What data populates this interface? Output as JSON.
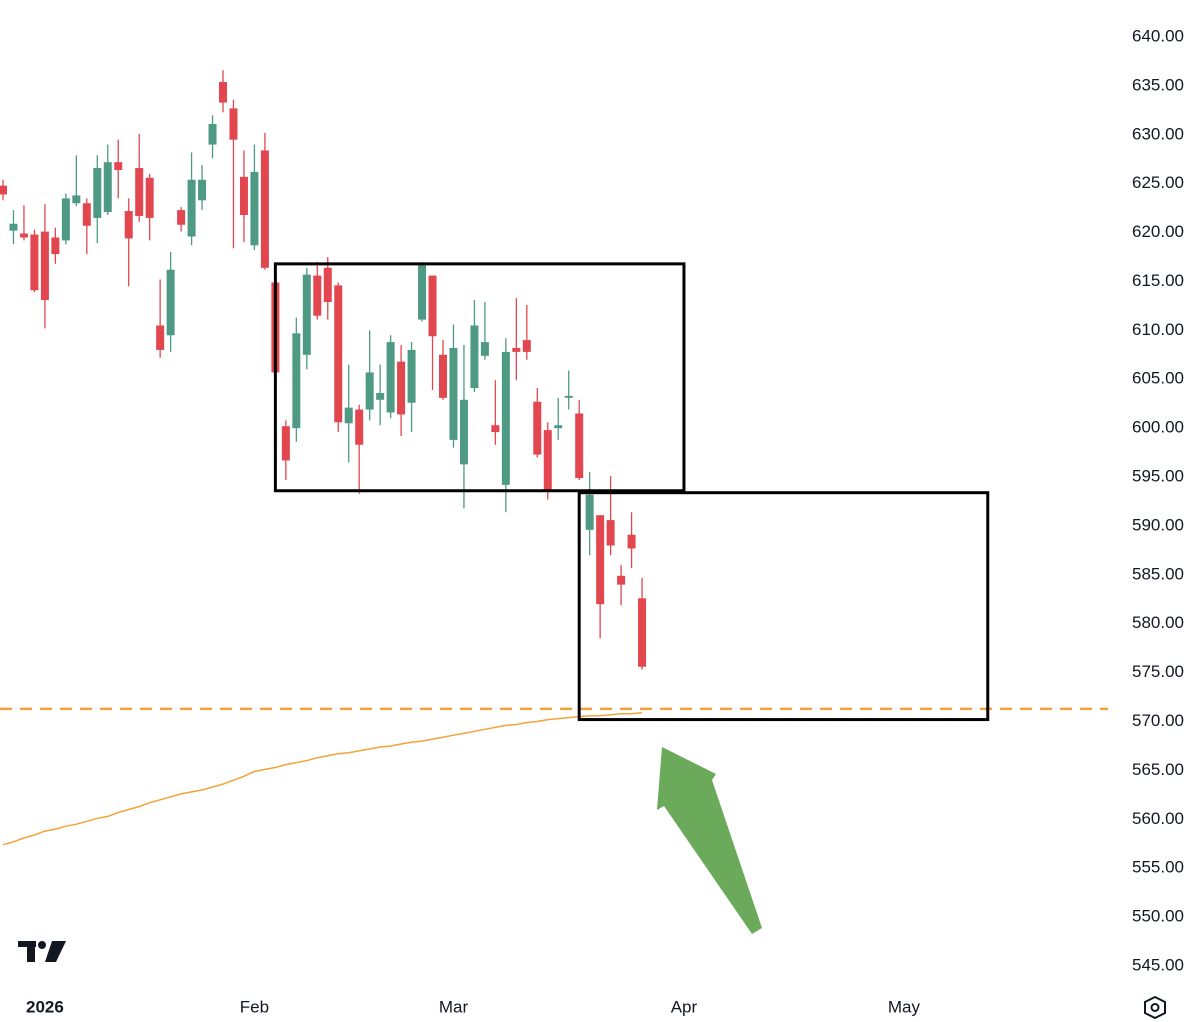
{
  "chart_data": {
    "type": "candlestick",
    "open": [
      624.8,
      620.2,
      619.9,
      619.8,
      620.1,
      619.5,
      619.2,
      623.0,
      623.0,
      621.5,
      622.1,
      627.2,
      622.2,
      626.6,
      625.6,
      610.5,
      609.5,
      622.3,
      619.6,
      623.3,
      629.0,
      635.4,
      632.7,
      625.7,
      618.7,
      628.4,
      614.9,
      600.2,
      600.0,
      607.5,
      615.6,
      616.4,
      614.6,
      600.5,
      601.9,
      601.9,
      602.9,
      601.6,
      606.8,
      602.6,
      611.1,
      615.6,
      607.5,
      598.8,
      596.3,
      604.1,
      607.4,
      600.3,
      594.2,
      608.2,
      609.0,
      602.7,
      599.8,
      600.0,
      603.1,
      601.5,
      589.6,
      591.1,
      590.6,
      584.9,
      589.1,
      582.6
    ],
    "high": [
      625.4,
      622.3,
      622.8,
      620.3,
      622.9,
      620.5,
      624.0,
      627.9,
      623.5,
      627.9,
      629.0,
      629.5,
      623.5,
      630.1,
      626.0,
      615.2,
      618.0,
      622.6,
      628.2,
      626.9,
      632.0,
      636.6,
      633.6,
      628.4,
      629.0,
      630.2,
      616.7,
      600.8,
      611.3,
      616.4,
      617.0,
      617.5,
      614.9,
      606.5,
      602.4,
      610.0,
      606.5,
      609.5,
      608.5,
      608.8,
      617.0,
      615.6,
      609.0,
      610.6,
      608.5,
      613.1,
      612.9,
      604.9,
      609.2,
      613.3,
      612.6,
      604.1,
      600.6,
      603.1,
      605.9,
      602.9,
      595.5,
      591.1,
      595.1,
      586.0,
      591.4,
      584.7
    ],
    "low": [
      623.3,
      618.8,
      619.2,
      613.9,
      610.2,
      616.8,
      618.8,
      622.7,
      617.8,
      618.9,
      621.8,
      623.5,
      614.5,
      621.1,
      619.2,
      607.2,
      607.8,
      620.1,
      618.7,
      622.3,
      627.6,
      632.3,
      618.4,
      619.0,
      618.2,
      616.2,
      599.8,
      594.7,
      598.6,
      606.0,
      611.1,
      611.1,
      599.6,
      596.5,
      593.3,
      600.8,
      600.3,
      601.0,
      599.2,
      599.6,
      610.9,
      603.9,
      602.9,
      598.0,
      591.8,
      603.7,
      607.0,
      598.3,
      591.4,
      604.9,
      607.0,
      597.0,
      592.7,
      598.8,
      601.9,
      594.7,
      587.0,
      578.5,
      587.0,
      581.9,
      585.7,
      575.3
    ],
    "close": [
      623.9,
      620.9,
      619.5,
      614.1,
      613.1,
      617.8,
      623.5,
      623.8,
      620.7,
      626.6,
      627.2,
      626.4,
      619.4,
      621.7,
      621.5,
      608.0,
      616.2,
      620.8,
      625.4,
      625.4,
      631.1,
      633.3,
      629.5,
      621.8,
      626.2,
      616.4,
      605.7,
      596.7,
      609.7,
      615.7,
      611.5,
      612.9,
      600.6,
      602.1,
      598.3,
      605.7,
      603.6,
      608.8,
      601.4,
      608.0,
      616.7,
      609.4,
      603.1,
      608.2,
      602.9,
      610.5,
      608.8,
      599.6,
      607.8,
      607.8,
      607.8,
      597.3,
      593.7,
      600.3,
      603.3,
      594.9,
      593.2,
      582.0,
      588.0,
      584.0,
      587.7,
      575.6
    ],
    "up_color": "#4f9a84",
    "down_color": "#e2464f",
    "moving_average": {
      "color": "#f2a33a",
      "values": [
        557.4,
        557.7,
        558.1,
        558.4,
        558.8,
        559.0,
        559.3,
        559.5,
        559.8,
        560.1,
        560.3,
        560.7,
        561.0,
        561.3,
        561.7,
        562.0,
        562.3,
        562.6,
        562.8,
        563.0,
        563.3,
        563.6,
        564.0,
        564.4,
        564.9,
        565.1,
        565.3,
        565.6,
        565.8,
        566.0,
        566.3,
        566.5,
        566.7,
        566.8,
        567.0,
        567.2,
        567.4,
        567.5,
        567.7,
        567.9,
        568.0,
        568.2,
        568.4,
        568.6,
        568.8,
        569.0,
        569.2,
        569.4,
        569.6,
        569.7,
        569.9,
        570.0,
        570.2,
        570.3,
        570.4,
        570.5,
        570.6,
        570.6,
        570.7,
        570.8,
        570.8,
        570.9
      ]
    },
    "horizontal_line": {
      "value": 571.3,
      "color": "#f2a33a"
    },
    "boxes": [
      {
        "x": [
          26,
          65
        ],
        "y": [
          593.6,
          616.8
        ]
      },
      {
        "x": [
          55,
          94
        ],
        "y": [
          570.2,
          593.4
        ]
      }
    ],
    "xlim": [
      0,
      105
    ],
    "xticks": [
      {
        "value": 4,
        "label": "2026"
      },
      {
        "value": 24,
        "label": "Feb"
      },
      {
        "value": 43,
        "label": "Mar"
      },
      {
        "value": 65,
        "label": "Apr"
      },
      {
        "value": 86,
        "label": "May"
      }
    ],
    "ylim": [
      545,
      640
    ],
    "yticks": [
      {
        "value": 545,
        "label": "545.00"
      },
      {
        "value": 550,
        "label": "550.00"
      },
      {
        "value": 555,
        "label": "555.00"
      },
      {
        "value": 560,
        "label": "560.00"
      },
      {
        "value": 565,
        "label": "565.00"
      },
      {
        "value": 570,
        "label": "570.00"
      },
      {
        "value": 575,
        "label": "575.00"
      },
      {
        "value": 580,
        "label": "580.00"
      },
      {
        "value": 585,
        "label": "585.00"
      },
      {
        "value": 590,
        "label": "590.00"
      },
      {
        "value": 595,
        "label": "595.00"
      },
      {
        "value": 600,
        "label": "600.00"
      },
      {
        "value": 605,
        "label": "605.00"
      },
      {
        "value": 610,
        "label": "610.00"
      },
      {
        "value": 615,
        "label": "615.00"
      },
      {
        "value": 620,
        "label": "620.00"
      },
      {
        "value": 625,
        "label": "625.00"
      },
      {
        "value": 630,
        "label": "630.00"
      },
      {
        "value": 635,
        "label": "635.00"
      },
      {
        "value": 640,
        "label": "640.00"
      }
    ]
  }
}
